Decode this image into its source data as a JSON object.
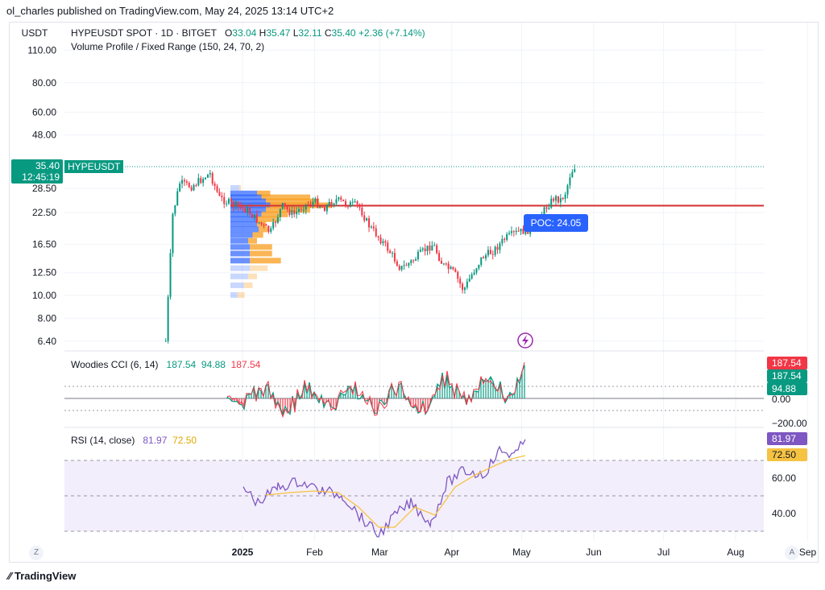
{
  "attribution": "ol_charles published on TradingView.com, May 24, 2025 13:14 UTC+2",
  "currency": "USDT",
  "legend": {
    "symbol": "HYPEUSDT SPOT · 1D · BITGET",
    "o_label": "O",
    "o": "33.04",
    "h_label": "H",
    "h": "35.47",
    "l_label": "L",
    "l": "32.11",
    "c_label": "C",
    "c": "35.40",
    "change": "+2.36 (+7.14%)",
    "vp": "Volume Profile / Fixed Range (150, 24, 70, 2)"
  },
  "last_price": {
    "price": "35.40",
    "countdown": "12:45:19",
    "symbol": "HYPEUSDT"
  },
  "poc": {
    "label": "POC: 24.05",
    "value": 24.05
  },
  "cci": {
    "title": "Woodies CCI (6, 14)",
    "v1": "187.54",
    "v2": "94.88",
    "v3": "187.54",
    "tags": [
      "187.54",
      "187.54",
      "94.88"
    ],
    "levels": [
      "0.00",
      "−200.00"
    ]
  },
  "rsi": {
    "title": "RSI (14, close)",
    "v1": "81.97",
    "v2": "72.50",
    "levels": [
      "60.00",
      "40.00"
    ]
  },
  "colors": {
    "up": "#089981",
    "down": "#f23645",
    "poc": "#d32f2f",
    "vp_up": "#2962ff",
    "vp_down": "#f89c1c",
    "rsi": "#7e57c2",
    "rsi_ma": "#f5c242",
    "rsi_band": "#f3eefb"
  },
  "footer": {
    "logo": "TradingView",
    "z": "Z",
    "a": "A"
  },
  "chart_data": {
    "type": "candlestick",
    "y_scale": "log",
    "ylim": [
      6.0,
      112
    ],
    "y_ticks": [
      "110.00",
      "80.00",
      "60.00",
      "48.00",
      "28.50",
      "22.50",
      "16.50",
      "12.50",
      "10.00",
      "8.00",
      "6.40"
    ],
    "x_ticks": [
      "2025",
      "Feb",
      "Mar",
      "Apr",
      "May",
      "Jun",
      "Jul",
      "Aug",
      "Sep"
    ],
    "close_path": [
      {
        "date": "2024-11-29",
        "close": 6.4
      },
      {
        "date": "2024-12-02",
        "close": 22.0
      },
      {
        "date": "2024-12-05",
        "close": 30.0
      },
      {
        "date": "2024-12-10",
        "close": 29.0
      },
      {
        "date": "2024-12-18",
        "close": 33.0
      },
      {
        "date": "2024-12-22",
        "close": 26.0
      },
      {
        "date": "2024-12-27",
        "close": 24.5
      },
      {
        "date": "2025-01-03",
        "close": 23.0
      },
      {
        "date": "2025-01-08",
        "close": 20.5
      },
      {
        "date": "2025-01-13",
        "close": 18.5
      },
      {
        "date": "2025-01-18",
        "close": 24.0
      },
      {
        "date": "2025-01-23",
        "close": 22.0
      },
      {
        "date": "2025-01-27",
        "close": 24.0
      },
      {
        "date": "2025-02-01",
        "close": 25.0
      },
      {
        "date": "2025-02-05",
        "close": 23.5
      },
      {
        "date": "2025-02-10",
        "close": 25.5
      },
      {
        "date": "2025-02-15",
        "close": 24.5
      },
      {
        "date": "2025-02-20",
        "close": 24.0
      },
      {
        "date": "2025-02-24",
        "close": 20.0
      },
      {
        "date": "2025-03-01",
        "close": 17.5
      },
      {
        "date": "2025-03-05",
        "close": 15.5
      },
      {
        "date": "2025-03-10",
        "close": 13.0
      },
      {
        "date": "2025-03-15",
        "close": 14.0
      },
      {
        "date": "2025-03-20",
        "close": 15.5
      },
      {
        "date": "2025-03-24",
        "close": 16.5
      },
      {
        "date": "2025-03-28",
        "close": 13.5
      },
      {
        "date": "2025-04-02",
        "close": 12.5
      },
      {
        "date": "2025-04-06",
        "close": 10.5
      },
      {
        "date": "2025-04-10",
        "close": 12.5
      },
      {
        "date": "2025-04-14",
        "close": 14.5
      },
      {
        "date": "2025-04-19",
        "close": 15.5
      },
      {
        "date": "2025-04-24",
        "close": 17.5
      },
      {
        "date": "2025-04-29",
        "close": 18.5
      },
      {
        "date": "2025-05-04",
        "close": 19.0
      },
      {
        "date": "2025-05-08",
        "close": 21.0
      },
      {
        "date": "2025-05-12",
        "close": 24.0
      },
      {
        "date": "2025-05-15",
        "close": 26.0
      },
      {
        "date": "2025-05-18",
        "close": 25.5
      },
      {
        "date": "2025-05-20",
        "close": 27.5
      },
      {
        "date": "2025-05-22",
        "close": 33.0
      },
      {
        "date": "2025-05-24",
        "close": 35.4
      }
    ],
    "volume_profile": [
      {
        "price": 28.5,
        "up": 0.1,
        "down": 0.02
      },
      {
        "price": 27.0,
        "up": 0.3,
        "down": 0.15
      },
      {
        "price": 26.0,
        "up": 0.35,
        "down": 0.55
      },
      {
        "price": 25.0,
        "up": 0.4,
        "down": 0.6
      },
      {
        "price": 24.05,
        "up": 0.45,
        "down": 0.7
      },
      {
        "price": 23.0,
        "up": 0.4,
        "down": 0.5
      },
      {
        "price": 22.0,
        "up": 0.35,
        "down": 0.3
      },
      {
        "price": 21.0,
        "up": 0.3,
        "down": 0.25
      },
      {
        "price": 20.0,
        "up": 0.3,
        "down": 0.1
      },
      {
        "price": 19.0,
        "up": 0.32,
        "down": 0.1
      },
      {
        "price": 18.0,
        "up": 0.25,
        "down": 0.12
      },
      {
        "price": 17.0,
        "up": 0.2,
        "down": 0.1
      },
      {
        "price": 16.0,
        "up": 0.22,
        "down": 0.25
      },
      {
        "price": 15.0,
        "up": 0.22,
        "down": 0.25
      },
      {
        "price": 14.0,
        "up": 0.22,
        "down": 0.35
      },
      {
        "price": 13.0,
        "up": 0.22,
        "down": 0.2
      },
      {
        "price": 12.0,
        "up": 0.2,
        "down": 0.1
      },
      {
        "price": 11.0,
        "up": 0.15,
        "down": 0.1
      },
      {
        "price": 10.0,
        "up": 0.08,
        "down": 0.08
      }
    ]
  }
}
